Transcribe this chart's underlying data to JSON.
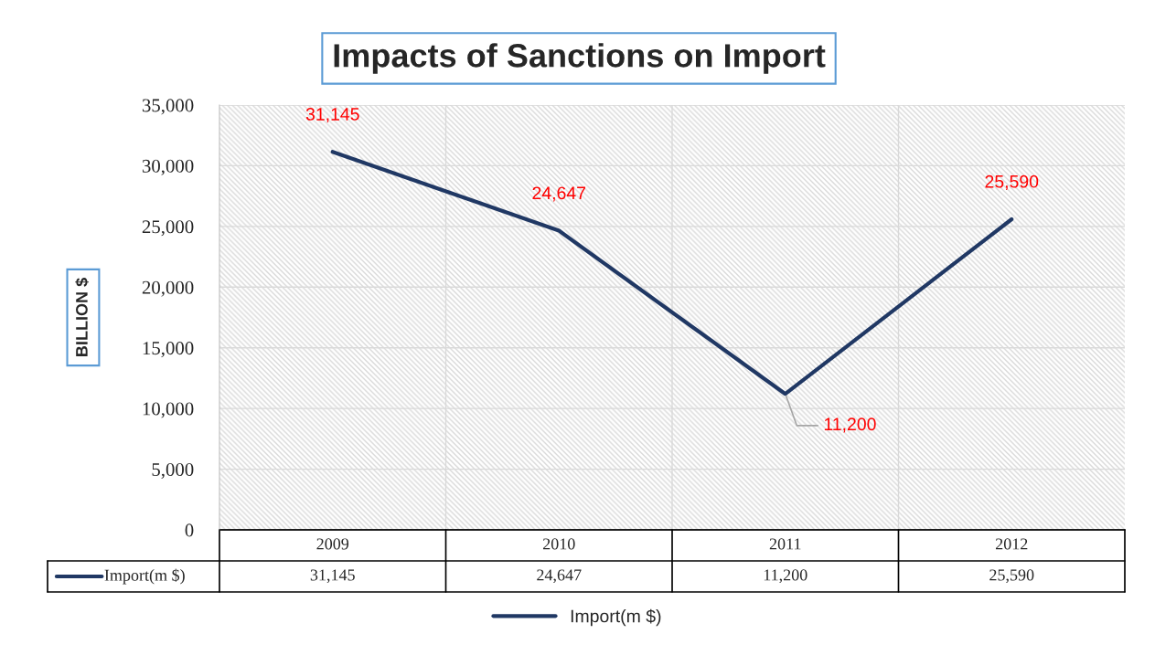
{
  "chart_data": {
    "type": "line",
    "title": "Impacts of Sanctions on Import",
    "ylabel": "BILLION $",
    "categories": [
      "2009",
      "2010",
      "2011",
      "2012"
    ],
    "series": [
      {
        "name": "Import(m $)",
        "color": "#203864",
        "values": [
          31145,
          24647,
          11200,
          25590
        ],
        "value_labels": [
          "31,145",
          "24,647",
          "11,200",
          "25,590"
        ]
      }
    ],
    "ylim": [
      0,
      35000
    ],
    "yticks": [
      0,
      {
        "value": 5000,
        "label": "5,000"
      },
      {
        "value": 10000,
        "label": "10,000"
      },
      {
        "value": 15000,
        "label": "15,000"
      },
      {
        "value": 20000,
        "label": "20,000"
      },
      {
        "value": 25000,
        "label": "25,000"
      },
      {
        "value": 30000,
        "label": "30,000"
      },
      {
        "value": 35000,
        "label": "35,000"
      }
    ],
    "grid": true,
    "legend": "bottom",
    "marker": "none",
    "line_style": "solid"
  }
}
